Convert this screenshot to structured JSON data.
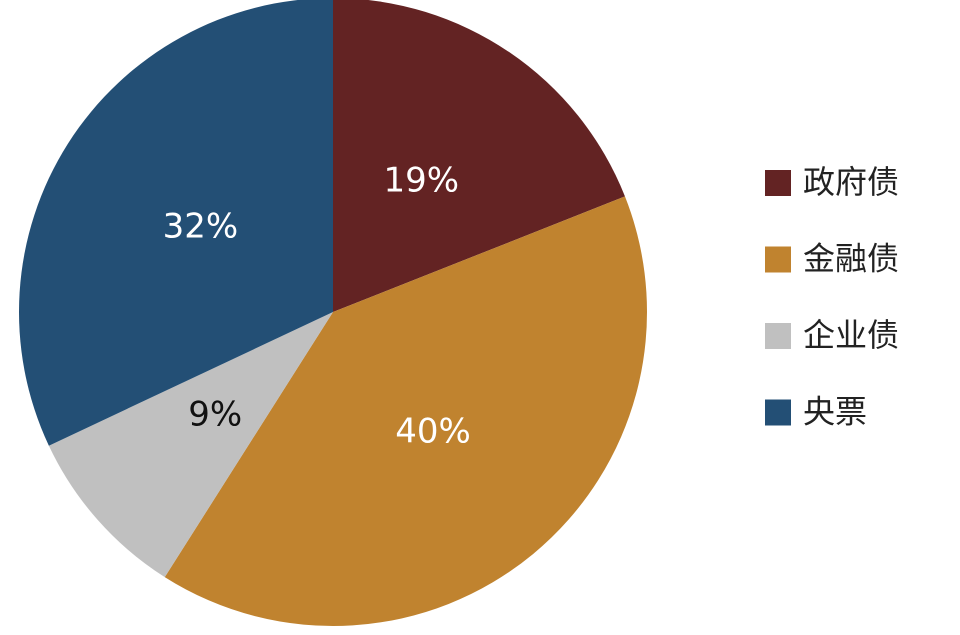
{
  "chart_data": {
    "type": "pie",
    "categories": [
      "政府债",
      "金融债",
      "企业债",
      "央票"
    ],
    "values": [
      19,
      40,
      9,
      32
    ],
    "value_labels": [
      "19%",
      "40%",
      "9%",
      "32%"
    ],
    "colors": [
      "#632323",
      "#c0832f",
      "#c0c0c0",
      "#234f75"
    ],
    "legend": "right"
  }
}
